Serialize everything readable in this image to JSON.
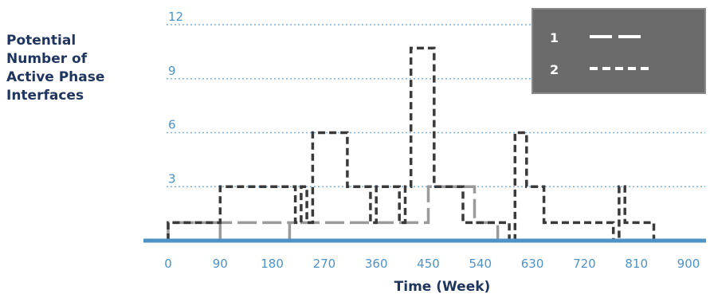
{
  "chart_data": {
    "type": "line",
    "title": "",
    "ylabel_lines": [
      "Potential",
      "Number of",
      "Active Phase",
      "Interfaces"
    ],
    "xlabel": "Time (Week)",
    "xlim": [
      0,
      920
    ],
    "ylim": [
      0,
      12
    ],
    "xticks": [
      0,
      90,
      180,
      270,
      360,
      450,
      540,
      630,
      720,
      810,
      900
    ],
    "yticks": [
      3,
      6,
      9,
      12
    ],
    "grid": "horizontal dotted",
    "legend_position": "top-right",
    "legend": [
      {
        "label": "1",
        "style": "long-dash"
      },
      {
        "label": "2",
        "style": "short-dash"
      }
    ],
    "baseline": {
      "y": 0,
      "color": "#4e93c6"
    },
    "series": [
      {
        "name": "1",
        "color": "#9a9a9a",
        "style": "long-dash",
        "points": [
          [
            0,
            0
          ],
          [
            0,
            1
          ],
          [
            90,
            1
          ],
          [
            90,
            0
          ],
          [
            90,
            1
          ],
          [
            210,
            1
          ],
          [
            210,
            0
          ],
          [
            210,
            1
          ],
          [
            450,
            1
          ],
          [
            450,
            3
          ],
          [
            530,
            3
          ],
          [
            530,
            1
          ],
          [
            570,
            1
          ],
          [
            570,
            0
          ],
          [
            720,
            0
          ]
        ]
      },
      {
        "name": "2",
        "color": "#3a3a3a",
        "style": "short-dash",
        "points": [
          [
            0,
            0
          ],
          [
            0,
            1
          ],
          [
            90,
            1
          ],
          [
            90,
            3
          ],
          [
            220,
            3
          ],
          [
            220,
            1
          ],
          [
            230,
            1
          ],
          [
            230,
            3
          ],
          [
            240,
            3
          ],
          [
            240,
            1
          ],
          [
            250,
            1
          ],
          [
            250,
            6
          ],
          [
            310,
            6
          ],
          [
            310,
            3
          ],
          [
            350,
            3
          ],
          [
            350,
            1
          ],
          [
            360,
            1
          ],
          [
            360,
            3
          ],
          [
            400,
            3
          ],
          [
            400,
            1
          ],
          [
            410,
            1
          ],
          [
            410,
            3
          ],
          [
            420,
            3
          ],
          [
            420,
            10.7
          ],
          [
            460,
            10.7
          ],
          [
            460,
            3
          ],
          [
            510,
            3
          ],
          [
            510,
            1
          ],
          [
            590,
            1
          ],
          [
            590,
            0
          ],
          [
            600,
            0
          ],
          [
            600,
            6
          ],
          [
            620,
            6
          ],
          [
            620,
            3
          ],
          [
            650,
            3
          ],
          [
            650,
            1
          ],
          [
            770,
            1
          ],
          [
            770,
            0
          ],
          [
            780,
            0
          ],
          [
            780,
            3
          ],
          [
            790,
            3
          ],
          [
            790,
            1
          ],
          [
            840,
            1
          ],
          [
            840,
            0
          ],
          [
            920,
            0
          ]
        ]
      }
    ]
  }
}
